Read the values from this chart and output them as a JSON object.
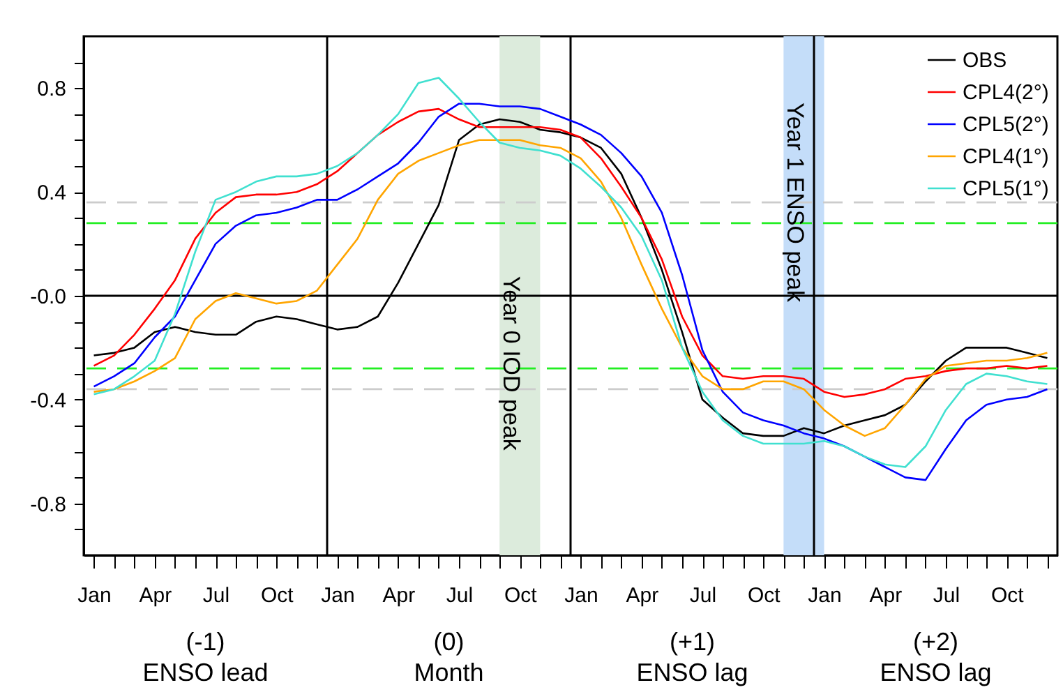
{
  "chart_data": {
    "type": "line",
    "categories": [
      "Jan",
      null,
      null,
      "Apr",
      null,
      null,
      "Jul",
      null,
      null,
      "Oct",
      null,
      null,
      "Jan",
      null,
      null,
      "Apr",
      null,
      null,
      "Jul",
      null,
      null,
      "Oct",
      null,
      null,
      "Jan",
      null,
      null,
      "Apr",
      null,
      null,
      "Jul",
      null,
      null,
      "Oct",
      null,
      null,
      "Jan",
      null,
      null,
      "Apr",
      null,
      null,
      "Jul",
      null,
      null,
      "Oct",
      null,
      null
    ],
    "series": [
      {
        "name": "OBS",
        "color": "#000000",
        "values": [
          -0.23,
          -0.22,
          -0.2,
          -0.14,
          -0.12,
          -0.14,
          -0.15,
          -0.15,
          -0.1,
          -0.08,
          -0.09,
          -0.11,
          -0.13,
          -0.12,
          -0.08,
          0.05,
          0.2,
          0.35,
          0.6,
          0.66,
          0.68,
          0.67,
          0.64,
          0.63,
          0.61,
          0.57,
          0.47,
          0.3,
          0.1,
          -0.14,
          -0.4,
          -0.47,
          -0.53,
          -0.54,
          -0.54,
          -0.51,
          -0.53,
          -0.5,
          -0.48,
          -0.46,
          -0.42,
          -0.33,
          -0.25,
          -0.2,
          -0.2,
          -0.2,
          -0.22,
          -0.24
        ]
      },
      {
        "name": "CPL4(2°)",
        "color": "#ff0000",
        "values": [
          -0.27,
          -0.23,
          -0.15,
          -0.05,
          0.06,
          0.22,
          0.32,
          0.38,
          0.39,
          0.39,
          0.4,
          0.43,
          0.48,
          0.55,
          0.62,
          0.67,
          0.71,
          0.72,
          0.68,
          0.65,
          0.65,
          0.65,
          0.65,
          0.64,
          0.61,
          0.53,
          0.42,
          0.3,
          0.14,
          -0.08,
          -0.23,
          -0.31,
          -0.32,
          -0.31,
          -0.31,
          -0.32,
          -0.37,
          -0.39,
          -0.38,
          -0.36,
          -0.32,
          -0.31,
          -0.29,
          -0.28,
          -0.28,
          -0.27,
          -0.28,
          -0.27
        ]
      },
      {
        "name": "CPL5(2°)",
        "color": "#0000ff",
        "values": [
          -0.35,
          -0.31,
          -0.26,
          -0.16,
          -0.08,
          0.06,
          0.2,
          0.27,
          0.31,
          0.32,
          0.34,
          0.37,
          0.37,
          0.41,
          0.46,
          0.51,
          0.59,
          0.69,
          0.74,
          0.74,
          0.73,
          0.73,
          0.72,
          0.69,
          0.66,
          0.62,
          0.55,
          0.46,
          0.32,
          0.08,
          -0.21,
          -0.37,
          -0.45,
          -0.48,
          -0.5,
          -0.53,
          -0.55,
          -0.58,
          -0.62,
          -0.66,
          -0.7,
          -0.71,
          -0.59,
          -0.48,
          -0.42,
          -0.4,
          -0.39,
          -0.36
        ]
      },
      {
        "name": "CPL4(1°)",
        "color": "#ffa500",
        "values": [
          -0.37,
          -0.36,
          -0.33,
          -0.29,
          -0.24,
          -0.09,
          -0.02,
          0.01,
          -0.01,
          -0.03,
          -0.02,
          0.02,
          0.12,
          0.22,
          0.37,
          0.47,
          0.52,
          0.55,
          0.58,
          0.6,
          0.6,
          0.6,
          0.58,
          0.57,
          0.53,
          0.44,
          0.3,
          0.12,
          -0.05,
          -0.2,
          -0.31,
          -0.36,
          -0.36,
          -0.33,
          -0.33,
          -0.36,
          -0.44,
          -0.5,
          -0.54,
          -0.51,
          -0.42,
          -0.32,
          -0.27,
          -0.26,
          -0.25,
          -0.25,
          -0.24,
          -0.22
        ]
      },
      {
        "name": "CPL5(1°)",
        "color": "#40e0d0",
        "values": [
          -0.38,
          -0.36,
          -0.31,
          -0.25,
          -0.07,
          0.17,
          0.37,
          0.4,
          0.44,
          0.46,
          0.46,
          0.47,
          0.5,
          0.55,
          0.62,
          0.7,
          0.82,
          0.84,
          0.76,
          0.67,
          0.59,
          0.57,
          0.56,
          0.54,
          0.49,
          0.42,
          0.34,
          0.23,
          0.06,
          -0.2,
          -0.37,
          -0.48,
          -0.54,
          -0.57,
          -0.57,
          -0.57,
          -0.56,
          -0.58,
          -0.62,
          -0.65,
          -0.66,
          -0.58,
          -0.44,
          -0.34,
          -0.3,
          -0.31,
          -0.33,
          -0.34
        ]
      }
    ],
    "ylim": [
      -1,
      1
    ],
    "yticks": [
      {
        "value": -0.9,
        "label": null
      },
      -0.8,
      {
        "value": -0.7,
        "label": null
      },
      {
        "value": -0.6,
        "label": null
      },
      {
        "value": -0.5,
        "label": null
      },
      -0.4,
      {
        "value": -0.3,
        "label": null
      },
      {
        "value": -0.2,
        "label": null
      },
      {
        "value": -0.1,
        "label": null
      },
      {
        "value": 0,
        "label": "-0.0"
      },
      {
        "value": 0.1,
        "label": null
      },
      {
        "value": 0.2,
        "label": null
      },
      {
        "value": 0.3,
        "label": null
      },
      0.4,
      {
        "value": 0.5,
        "label": null
      },
      {
        "value": 0.6,
        "label": null
      },
      {
        "value": 0.7,
        "label": null
      },
      0.8,
      {
        "value": 0.9,
        "label": null
      }
    ],
    "ref_lines": [
      {
        "axis": "y",
        "value": 0,
        "color": "#000000",
        "line_style": "solid"
      },
      {
        "axis": "y",
        "value": 0.28,
        "color": "#22ee22",
        "line_style": "dashed"
      },
      {
        "axis": "y",
        "value": -0.28,
        "color": "#22ee22",
        "line_style": "dashed"
      },
      {
        "axis": "y",
        "value": 0.36,
        "color": "#cccccc",
        "line_style": "dashed"
      },
      {
        "axis": "y",
        "value": -0.36,
        "color": "#cccccc",
        "line_style": "dashed"
      }
    ],
    "annotations": [
      "Year 0 IOD peak",
      "Year 1 ENSO peak",
      "(-1)\nENSO lead",
      "(0)\nMonth",
      "(+1)\nENSO lag",
      "(+2)\nENSO lag"
    ],
    "legend": "top right",
    "marker": "none",
    "line_style": "solid"
  }
}
